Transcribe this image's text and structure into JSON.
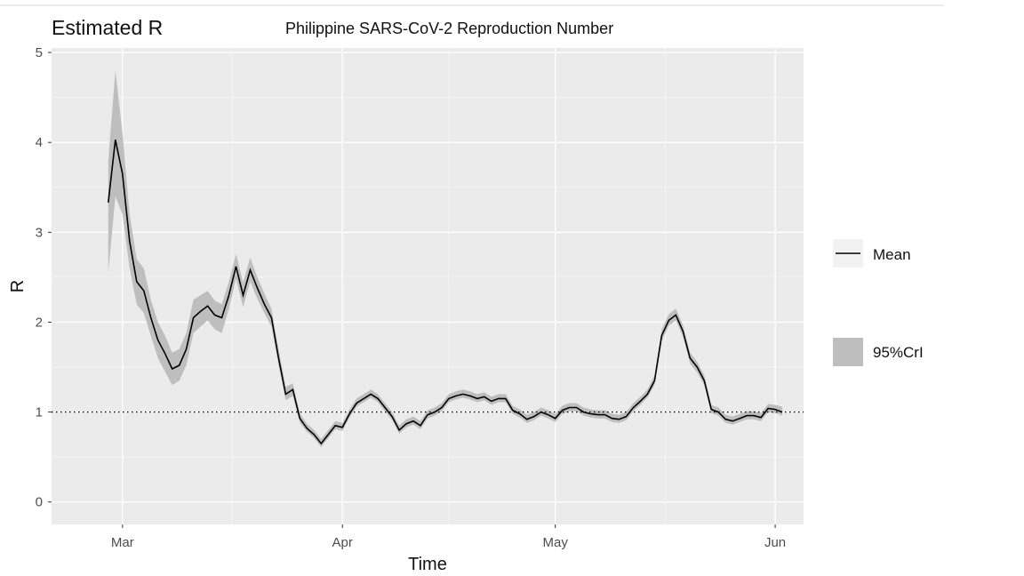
{
  "page": {
    "rule_color": "#d9d9d9"
  },
  "chart_data": {
    "type": "line",
    "title": "Estimated R",
    "subtitle": "Philippine SARS-CoV-2 Reproduction Number",
    "xlabel": "Time",
    "ylabel": "R",
    "x_scale": "date",
    "xlim": [
      "2020-02-20",
      "2020-06-05"
    ],
    "ylim": [
      -0.25,
      5.05
    ],
    "x_ticks": [
      {
        "date": "2020-03-01",
        "label": "Mar"
      },
      {
        "date": "2020-04-01",
        "label": "Apr"
      },
      {
        "date": "2020-05-01",
        "label": "May"
      },
      {
        "date": "2020-06-01",
        "label": "Jun"
      }
    ],
    "y_ticks": [
      0,
      1,
      2,
      3,
      4,
      5
    ],
    "grid": true,
    "reference_line": {
      "y": 1,
      "style": "dotted"
    },
    "legend": {
      "position": "right",
      "items": [
        {
          "label": "Mean",
          "kind": "line"
        },
        {
          "label": "95%CrI",
          "kind": "band"
        }
      ]
    },
    "colors": {
      "panel": "#ebebeb",
      "grid": "#ffffff",
      "mean": "#000000",
      "band": "#bebebe",
      "legend_key_bg": "#f2f2f2"
    },
    "series": [
      {
        "name": "Mean",
        "points": [
          [
            "2020-02-28",
            3.33,
            2.55,
            3.8
          ],
          [
            "2020-02-29",
            4.03,
            3.4,
            4.8
          ],
          [
            "2020-03-01",
            3.65,
            3.2,
            4.1
          ],
          [
            "2020-03-02",
            2.9,
            2.6,
            3.2
          ],
          [
            "2020-03-03",
            2.45,
            2.2,
            2.7
          ],
          [
            "2020-03-04",
            2.35,
            2.1,
            2.6
          ],
          [
            "2020-03-05",
            2.05,
            1.85,
            2.25
          ],
          [
            "2020-03-06",
            1.8,
            1.6,
            2.0
          ],
          [
            "2020-03-07",
            1.65,
            1.45,
            1.85
          ],
          [
            "2020-03-08",
            1.48,
            1.3,
            1.66
          ],
          [
            "2020-03-09",
            1.52,
            1.35,
            1.7
          ],
          [
            "2020-03-10",
            1.7,
            1.52,
            1.88
          ],
          [
            "2020-03-11",
            2.05,
            1.88,
            2.25
          ],
          [
            "2020-03-12",
            2.12,
            1.95,
            2.3
          ],
          [
            "2020-03-13",
            2.18,
            2.02,
            2.35
          ],
          [
            "2020-03-14",
            2.08,
            1.92,
            2.24
          ],
          [
            "2020-03-15",
            2.05,
            1.88,
            2.2
          ],
          [
            "2020-03-16",
            2.3,
            2.15,
            2.45
          ],
          [
            "2020-03-17",
            2.62,
            2.48,
            2.76
          ],
          [
            "2020-03-18",
            2.3,
            2.17,
            2.44
          ],
          [
            "2020-03-19",
            2.58,
            2.45,
            2.72
          ],
          [
            "2020-03-20",
            2.38,
            2.26,
            2.5
          ],
          [
            "2020-03-21",
            2.2,
            2.1,
            2.32
          ],
          [
            "2020-03-22",
            2.05,
            1.95,
            2.15
          ],
          [
            "2020-03-23",
            1.6,
            1.52,
            1.7
          ],
          [
            "2020-03-24",
            1.2,
            1.13,
            1.28
          ],
          [
            "2020-03-25",
            1.25,
            1.18,
            1.32
          ],
          [
            "2020-03-26",
            0.93,
            0.88,
            0.99
          ],
          [
            "2020-03-27",
            0.82,
            0.78,
            0.87
          ],
          [
            "2020-03-28",
            0.75,
            0.71,
            0.8
          ],
          [
            "2020-03-29",
            0.65,
            0.61,
            0.7
          ],
          [
            "2020-03-30",
            0.75,
            0.71,
            0.8
          ],
          [
            "2020-03-31",
            0.85,
            0.81,
            0.9
          ],
          [
            "2020-04-01",
            0.83,
            0.79,
            0.88
          ],
          [
            "2020-04-02",
            0.98,
            0.94,
            1.03
          ],
          [
            "2020-04-03",
            1.1,
            1.06,
            1.15
          ],
          [
            "2020-04-04",
            1.15,
            1.11,
            1.2
          ],
          [
            "2020-04-05",
            1.2,
            1.16,
            1.25
          ],
          [
            "2020-04-06",
            1.15,
            1.11,
            1.2
          ],
          [
            "2020-04-07",
            1.05,
            1.01,
            1.1
          ],
          [
            "2020-04-08",
            0.95,
            0.91,
            1.0
          ],
          [
            "2020-04-09",
            0.8,
            0.76,
            0.85
          ],
          [
            "2020-04-10",
            0.87,
            0.83,
            0.92
          ],
          [
            "2020-04-11",
            0.9,
            0.86,
            0.95
          ],
          [
            "2020-04-12",
            0.85,
            0.81,
            0.9
          ],
          [
            "2020-04-13",
            0.97,
            0.93,
            1.02
          ],
          [
            "2020-04-14",
            1.0,
            0.96,
            1.05
          ],
          [
            "2020-04-15",
            1.05,
            1.01,
            1.1
          ],
          [
            "2020-04-16",
            1.15,
            1.11,
            1.2
          ],
          [
            "2020-04-17",
            1.18,
            1.14,
            1.23
          ],
          [
            "2020-04-18",
            1.2,
            1.16,
            1.25
          ],
          [
            "2020-04-19",
            1.18,
            1.14,
            1.23
          ],
          [
            "2020-04-20",
            1.15,
            1.11,
            1.2
          ],
          [
            "2020-04-21",
            1.17,
            1.13,
            1.22
          ],
          [
            "2020-04-22",
            1.12,
            1.08,
            1.17
          ],
          [
            "2020-04-23",
            1.15,
            1.11,
            1.2
          ],
          [
            "2020-04-24",
            1.15,
            1.11,
            1.2
          ],
          [
            "2020-04-25",
            1.02,
            0.98,
            1.07
          ],
          [
            "2020-04-26",
            0.98,
            0.94,
            1.03
          ],
          [
            "2020-04-27",
            0.92,
            0.88,
            0.97
          ],
          [
            "2020-04-28",
            0.95,
            0.91,
            1.0
          ],
          [
            "2020-04-29",
            1.0,
            0.96,
            1.05
          ],
          [
            "2020-04-30",
            0.97,
            0.93,
            1.02
          ],
          [
            "2020-05-01",
            0.93,
            0.89,
            0.98
          ],
          [
            "2020-05-02",
            1.02,
            0.98,
            1.07
          ],
          [
            "2020-05-03",
            1.05,
            1.01,
            1.1
          ],
          [
            "2020-05-04",
            1.05,
            1.01,
            1.1
          ],
          [
            "2020-05-05",
            1.0,
            0.96,
            1.05
          ],
          [
            "2020-05-06",
            0.98,
            0.94,
            1.03
          ],
          [
            "2020-05-07",
            0.97,
            0.93,
            1.02
          ],
          [
            "2020-05-08",
            0.97,
            0.93,
            1.02
          ],
          [
            "2020-05-09",
            0.93,
            0.89,
            0.98
          ],
          [
            "2020-05-10",
            0.92,
            0.88,
            0.97
          ],
          [
            "2020-05-11",
            0.95,
            0.91,
            1.0
          ],
          [
            "2020-05-12",
            1.05,
            1.01,
            1.1
          ],
          [
            "2020-05-13",
            1.12,
            1.08,
            1.17
          ],
          [
            "2020-05-14",
            1.2,
            1.16,
            1.25
          ],
          [
            "2020-05-15",
            1.35,
            1.3,
            1.41
          ],
          [
            "2020-05-16",
            1.85,
            1.79,
            1.92
          ],
          [
            "2020-05-17",
            2.02,
            1.96,
            2.09
          ],
          [
            "2020-05-18",
            2.08,
            2.02,
            2.15
          ],
          [
            "2020-05-19",
            1.9,
            1.84,
            1.97
          ],
          [
            "2020-05-20",
            1.6,
            1.54,
            1.66
          ],
          [
            "2020-05-21",
            1.5,
            1.44,
            1.56
          ],
          [
            "2020-05-22",
            1.35,
            1.3,
            1.41
          ],
          [
            "2020-05-23",
            1.03,
            0.99,
            1.08
          ],
          [
            "2020-05-24",
            1.0,
            0.96,
            1.05
          ],
          [
            "2020-05-25",
            0.92,
            0.88,
            0.97
          ],
          [
            "2020-05-26",
            0.9,
            0.86,
            0.95
          ],
          [
            "2020-05-27",
            0.93,
            0.89,
            0.98
          ],
          [
            "2020-05-28",
            0.96,
            0.92,
            1.01
          ],
          [
            "2020-05-29",
            0.96,
            0.92,
            1.01
          ],
          [
            "2020-05-30",
            0.94,
            0.9,
            0.99
          ],
          [
            "2020-05-31",
            1.04,
            1.0,
            1.09
          ],
          [
            "2020-06-01",
            1.03,
            0.99,
            1.08
          ],
          [
            "2020-06-02",
            1.0,
            0.96,
            1.06
          ]
        ]
      }
    ]
  }
}
